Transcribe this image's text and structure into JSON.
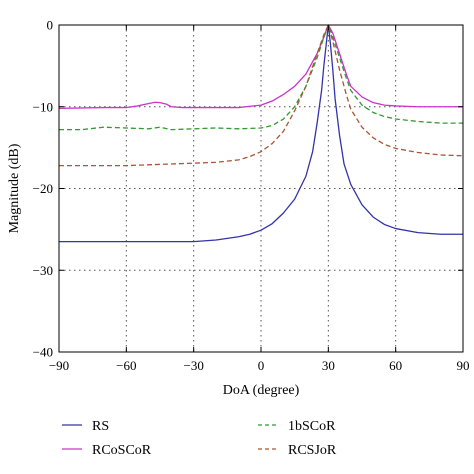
{
  "chart_data": {
    "type": "line",
    "title": "",
    "xlabel": "DoA (degree)",
    "ylabel": "Magnitude (dB)",
    "xlim": [
      -90,
      90
    ],
    "ylim": [
      -40,
      0
    ],
    "xticks": [
      -90,
      -60,
      -30,
      0,
      30,
      60,
      90
    ],
    "yticks": [
      0,
      -10,
      -20,
      -30,
      -40
    ],
    "grid": true,
    "legend_position": "below-plot",
    "series": [
      {
        "name": "RS",
        "color": "#3333aa",
        "dash": "solid",
        "x": [
          -90,
          -60,
          -40,
          -30,
          -20,
          -10,
          -5,
          0,
          5,
          10,
          15,
          20,
          23,
          25,
          27,
          28,
          29,
          30,
          31,
          32,
          33,
          35,
          37,
          40,
          45,
          50,
          55,
          60,
          70,
          80,
          90
        ],
        "y": [
          -26.5,
          -26.5,
          -26.5,
          -26.5,
          -26.3,
          -25.9,
          -25.6,
          -25.1,
          -24.3,
          -23.0,
          -21.3,
          -18.5,
          -15.5,
          -12.0,
          -8.0,
          -5.0,
          -2.5,
          0,
          -2.5,
          -5.5,
          -9.0,
          -13.5,
          -17.0,
          -19.5,
          -22.0,
          -23.5,
          -24.4,
          -24.9,
          -25.4,
          -25.6,
          -25.6
        ]
      },
      {
        "name": "RCoSCoR",
        "color": "#cc33cc",
        "dash": "solid",
        "x": [
          -90,
          -70,
          -60,
          -55,
          -50,
          -47,
          -45,
          -42,
          -40,
          -35,
          -30,
          -20,
          -10,
          0,
          5,
          10,
          15,
          20,
          25,
          28,
          30,
          32,
          35,
          38,
          40,
          45,
          50,
          55,
          60,
          70,
          80,
          90
        ],
        "y": [
          -10.2,
          -10.1,
          -10.1,
          -9.9,
          -9.6,
          -9.45,
          -9.5,
          -9.7,
          -10.0,
          -10.1,
          -10.1,
          -10.1,
          -10.1,
          -9.8,
          -9.3,
          -8.5,
          -7.5,
          -6.0,
          -3.5,
          -1.5,
          0,
          -1.0,
          -3.5,
          -6.0,
          -7.5,
          -8.8,
          -9.5,
          -9.8,
          -9.9,
          -10.0,
          -10.0,
          -10.0
        ]
      },
      {
        "name": "1bSCoR",
        "color": "#339933",
        "dash": "dashed",
        "x": [
          -90,
          -80,
          -70,
          -60,
          -50,
          -45,
          -40,
          -30,
          -20,
          -10,
          0,
          5,
          10,
          15,
          20,
          25,
          28,
          30,
          32,
          35,
          38,
          40,
          45,
          50,
          55,
          60,
          70,
          80,
          90
        ],
        "y": [
          -12.8,
          -12.8,
          -12.5,
          -12.6,
          -12.7,
          -12.5,
          -12.8,
          -12.7,
          -12.6,
          -12.7,
          -12.6,
          -12.3,
          -11.5,
          -10.0,
          -7.5,
          -4.0,
          -1.5,
          0,
          -1.5,
          -4.0,
          -6.5,
          -8.0,
          -9.8,
          -10.7,
          -11.2,
          -11.5,
          -11.8,
          -12.0,
          -12.0
        ]
      },
      {
        "name": "RCSJoR",
        "color": "#aa5533",
        "dash": "dashed",
        "x": [
          -90,
          -70,
          -60,
          -50,
          -40,
          -30,
          -20,
          -10,
          -5,
          0,
          5,
          10,
          15,
          20,
          25,
          28,
          30,
          32,
          35,
          38,
          40,
          45,
          50,
          55,
          60,
          70,
          80,
          90
        ],
        "y": [
          -17.2,
          -17.2,
          -17.2,
          -17.1,
          -17.0,
          -16.9,
          -16.8,
          -16.5,
          -16.1,
          -15.5,
          -14.5,
          -13.0,
          -10.5,
          -7.5,
          -3.5,
          -1.2,
          0,
          -2.0,
          -5.5,
          -8.5,
          -10.3,
          -12.5,
          -13.8,
          -14.6,
          -15.1,
          -15.6,
          -15.9,
          -16.0
        ]
      }
    ]
  }
}
